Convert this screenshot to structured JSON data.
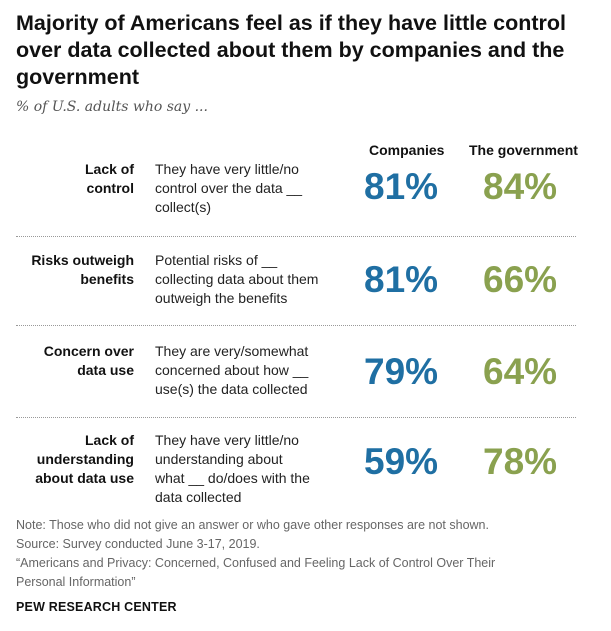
{
  "header": {
    "title": "Majority of Americans feel as if they have little control over data collected about them by companies and the government",
    "subtitle": "% of U.S. adults who say ..."
  },
  "chart_data": {
    "type": "table",
    "columns": [
      "Companies",
      "The government"
    ],
    "colors": {
      "companies": "#1f6fa3",
      "government": "#8aa14f"
    },
    "rows": [
      {
        "category_lines": [
          "Lack of",
          "control"
        ],
        "description_lines": [
          "They have very little/no",
          "control over the data __",
          "collect(s)"
        ],
        "companies": "81%",
        "government": "84%"
      },
      {
        "category_lines": [
          "Risks outweigh",
          "benefits"
        ],
        "description_lines": [
          "Potential risks of __",
          "collecting data about them",
          "outweigh the benefits"
        ],
        "companies": "81%",
        "government": "66%"
      },
      {
        "category_lines": [
          "Concern over",
          "data use"
        ],
        "description_lines": [
          "They are very/somewhat",
          "concerned about how __",
          "use(s) the data collected"
        ],
        "companies": "79%",
        "government": "64%"
      },
      {
        "category_lines": [
          "Lack of",
          "understanding",
          "about data use"
        ],
        "description_lines": [
          "They have very little/no",
          "understanding about",
          "what __ do/does with the",
          "data collected"
        ],
        "companies": "59%",
        "government": "78%"
      }
    ]
  },
  "footer": {
    "note": "Note: Those who did not give an answer or who gave other responses are not shown.",
    "source": "Source: Survey conducted June 3-17, 2019.",
    "citation_line1": "“Americans and Privacy: Concerned, Confused and Feeling Lack of Control Over Their",
    "citation_line2": "Personal Information”",
    "brand": "PEW RESEARCH CENTER"
  }
}
